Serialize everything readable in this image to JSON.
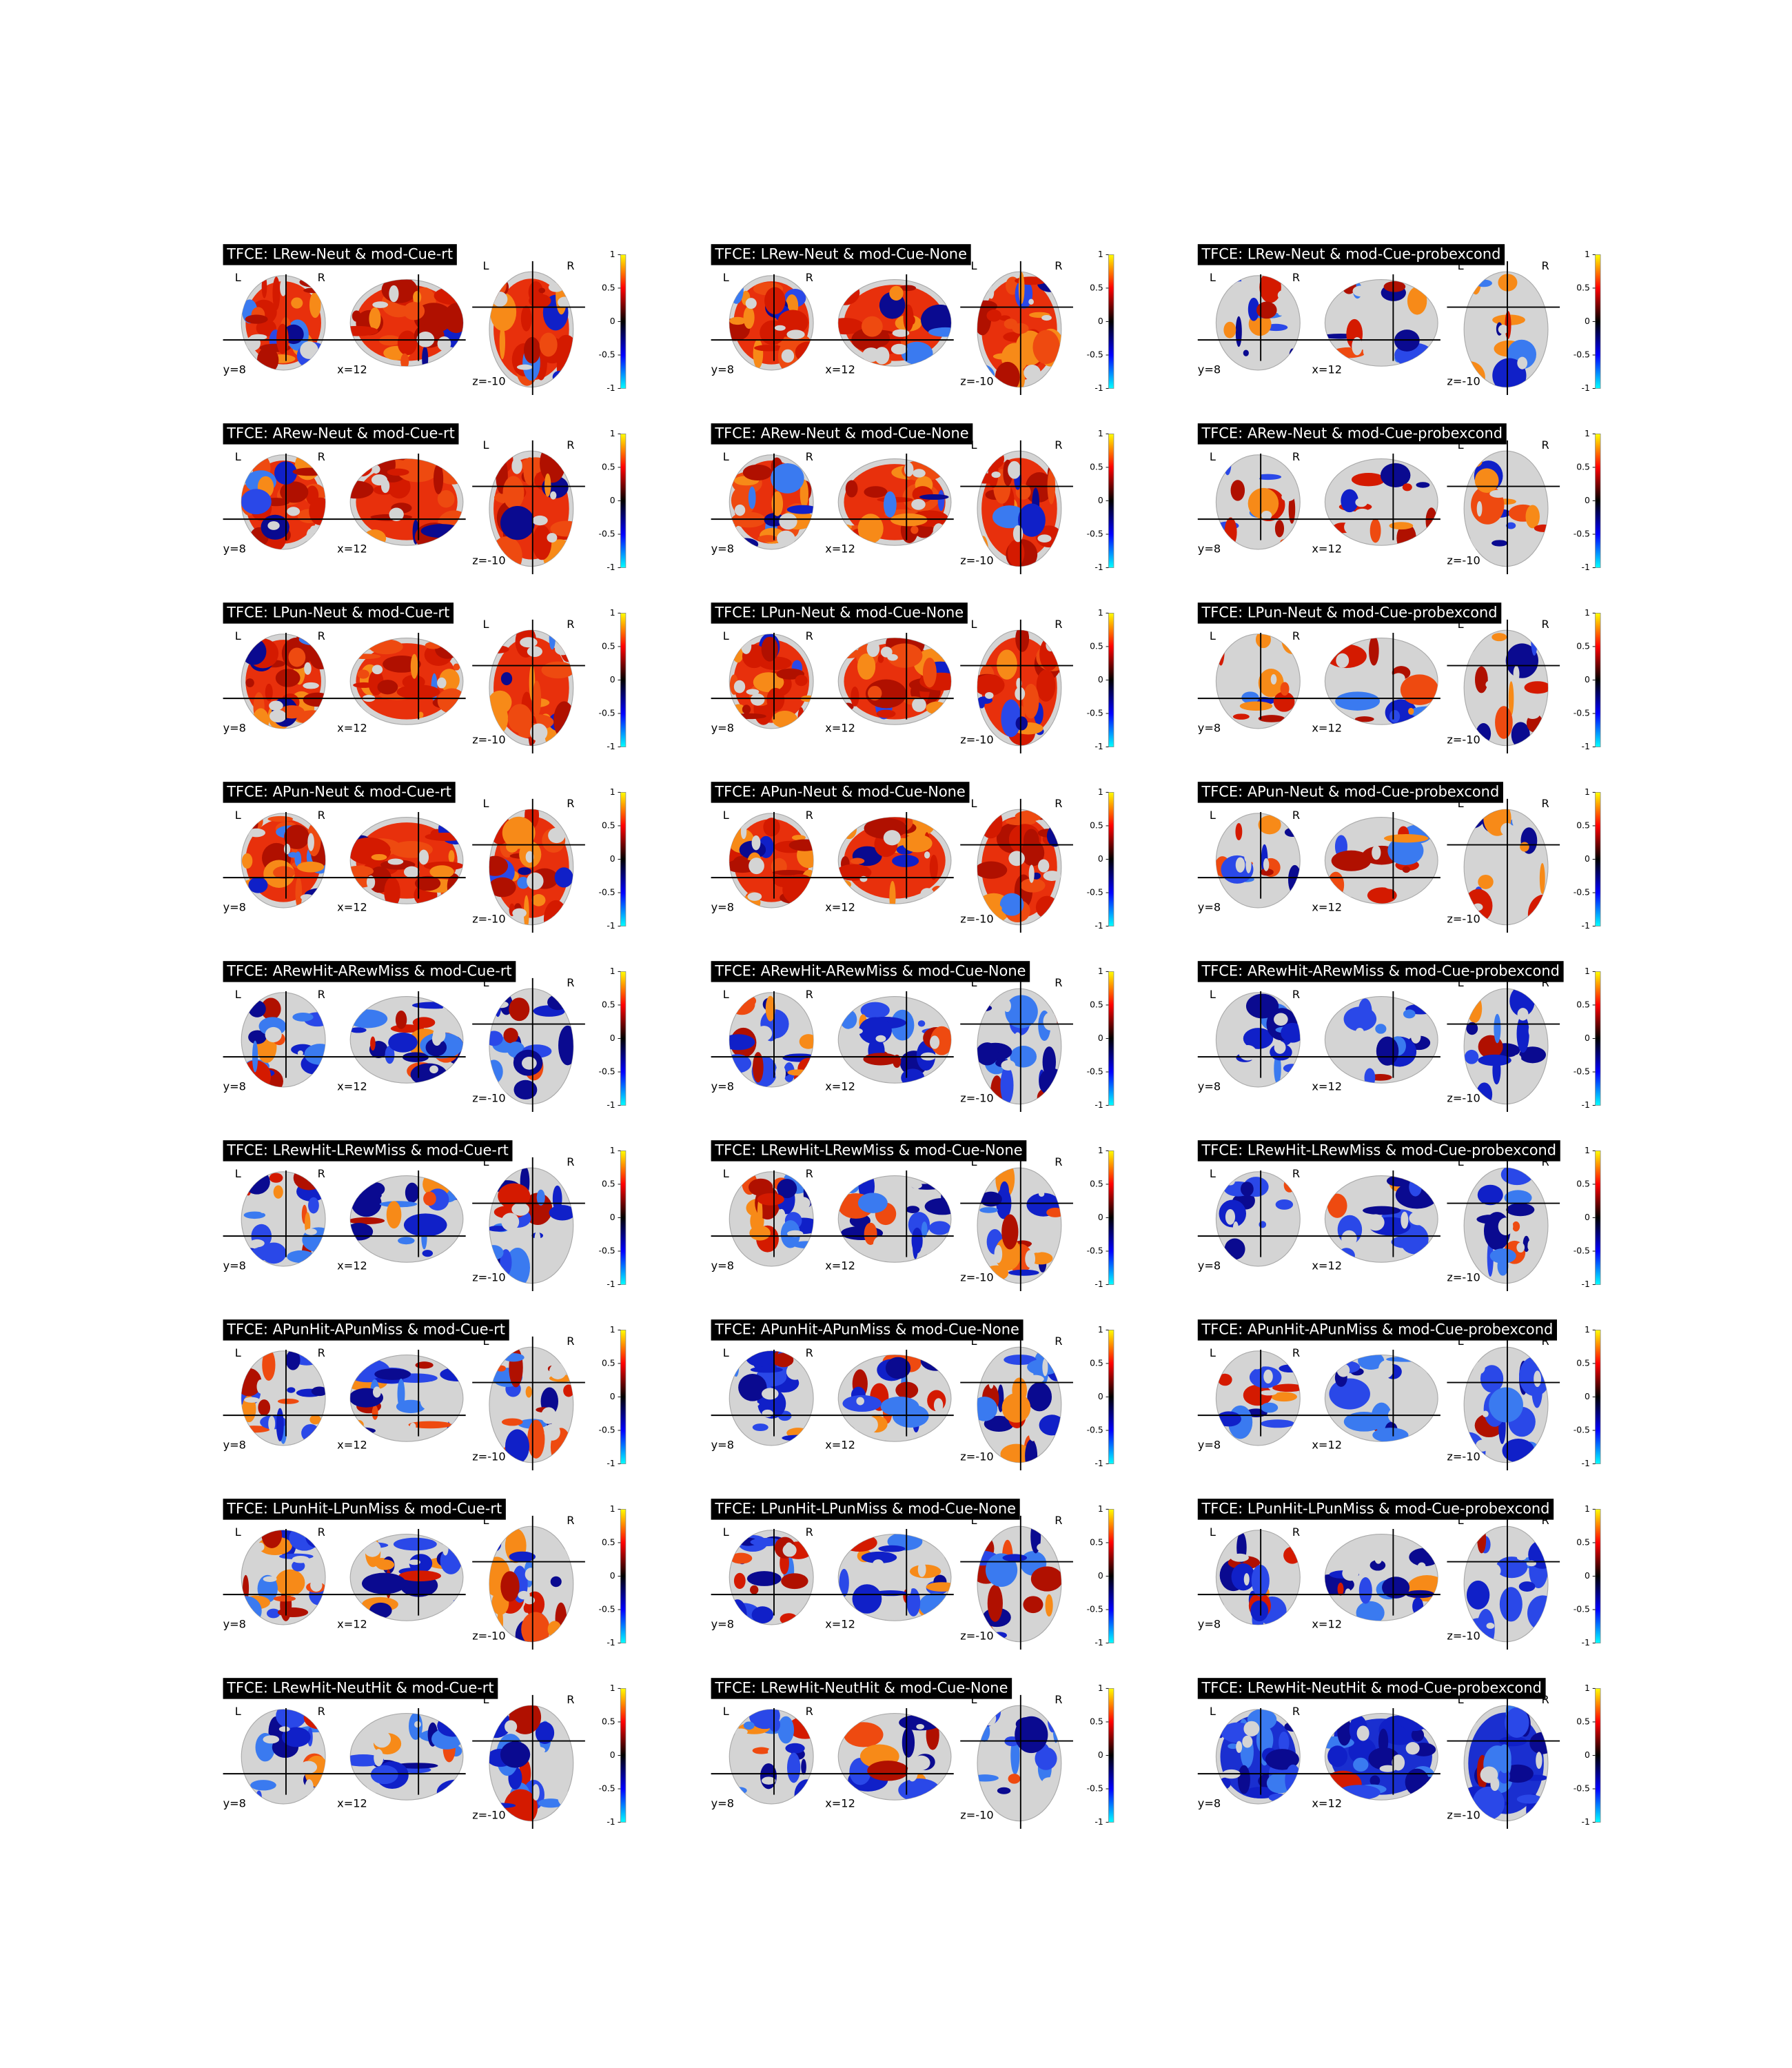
{
  "panels": [
    {
      "title": "TFCE: LRew-Neut & mod-Cue-rt"
    },
    {
      "title": "TFCE: LRew-Neut & mod-Cue-None"
    },
    {
      "title": "TFCE: LRew-Neut & mod-Cue-probexcond"
    },
    {
      "title": "TFCE: ARew-Neut & mod-Cue-rt"
    },
    {
      "title": "TFCE: ARew-Neut & mod-Cue-None"
    },
    {
      "title": "TFCE: ARew-Neut & mod-Cue-probexcond"
    },
    {
      "title": "TFCE: LPun-Neut & mod-Cue-rt"
    },
    {
      "title": "TFCE: LPun-Neut & mod-Cue-None"
    },
    {
      "title": "TFCE: LPun-Neut & mod-Cue-probexcond"
    },
    {
      "title": "TFCE: APun-Neut & mod-Cue-rt"
    },
    {
      "title": "TFCE: APun-Neut & mod-Cue-None"
    },
    {
      "title": "TFCE: APun-Neut & mod-Cue-probexcond"
    },
    {
      "title": "TFCE: ARewHit-ARewMiss & mod-Cue-rt"
    },
    {
      "title": "TFCE: ARewHit-ARewMiss & mod-Cue-None"
    },
    {
      "title": "TFCE: ARewHit-ARewMiss & mod-Cue-probexcond"
    },
    {
      "title": "TFCE: LRewHit-LRewMiss & mod-Cue-rt"
    },
    {
      "title": "TFCE: LRewHit-LRewMiss & mod-Cue-None"
    },
    {
      "title": "TFCE: LRewHit-LRewMiss & mod-Cue-probexcond"
    },
    {
      "title": "TFCE: APunHit-APunMiss & mod-Cue-rt"
    },
    {
      "title": "TFCE: APunHit-APunMiss & mod-Cue-None"
    },
    {
      "title": "TFCE: APunHit-APunMiss & mod-Cue-probexcond"
    },
    {
      "title": "TFCE: LPunHit-LPunMiss & mod-Cue-rt"
    },
    {
      "title": "TFCE: LPunHit-LPunMiss & mod-Cue-None"
    },
    {
      "title": "TFCE: LPunHit-LPunMiss & mod-Cue-probexcond"
    },
    {
      "title": "TFCE: LRewHit-NeutHit & mod-Cue-rt"
    },
    {
      "title": "TFCE: LRewHit-NeutHit & mod-Cue-None"
    },
    {
      "title": "TFCE: LRewHit-NeutHit & mod-Cue-probexcond"
    }
  ],
  "labels": {
    "left": "L",
    "right": "R",
    "coronal": "y=8",
    "sagittal": "x=12",
    "axial": "z=-10"
  },
  "colorbar": {
    "ticks": [
      1,
      0.5,
      0,
      -0.5,
      -1
    ]
  }
}
